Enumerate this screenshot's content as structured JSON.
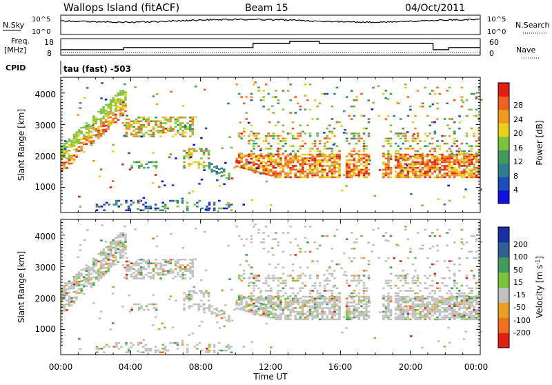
{
  "header": {
    "title": "Wallops Island (fitACF)",
    "beam": "Beam 15",
    "date": "04/Oct/2011"
  },
  "params": {
    "nsky_label": "N.Sky",
    "nsky_ticks": [
      "10^5",
      "10^0"
    ],
    "nsearch_label": "N.Search",
    "nsearch_ticks": [
      "10^5",
      "10^0"
    ],
    "freq_label": [
      "Freq.",
      "[MHz]"
    ],
    "freq_ticks": [
      "18",
      "8"
    ],
    "nave_label": "Nave",
    "nave_ticks": [
      "60",
      "0"
    ],
    "cpid_label": "CPID",
    "cpid_value": "tau (fast) -503"
  },
  "x_axis": {
    "label": "Time UT",
    "ticks": [
      "00:00",
      "04:00",
      "08:00",
      "12:00",
      "16:00",
      "20:00",
      "00:00"
    ]
  },
  "chart_data": [
    {
      "type": "heatmap",
      "name": "power",
      "ylabel": "Slant Range [km]",
      "yticks": [
        "1000",
        "2000",
        "3000",
        "4000"
      ],
      "ylim": [
        200,
        4500
      ],
      "xlim_hours": [
        0,
        24
      ],
      "colorbar": {
        "label": "Power [dB]",
        "ticks": [
          "4",
          "8",
          "12",
          "16",
          "20",
          "24",
          "28"
        ],
        "colors": [
          "#1010e0",
          "#1a50b8",
          "#2f7d8d",
          "#3f9a5d",
          "#7cc33d",
          "#e8d21a",
          "#f09a1e",
          "#f06020",
          "#e02010"
        ]
      },
      "bands": [
        {
          "t": [
            0.0,
            3.7
          ],
          "r": [
            1400,
            3900
          ],
          "note": "rising band"
        },
        {
          "t": [
            3.7,
            7.6
          ],
          "r": [
            2650,
            3300
          ]
        },
        {
          "t": [
            4.0,
            5.5
          ],
          "r": [
            1650,
            1850
          ]
        },
        {
          "t": [
            7.0,
            8.5
          ],
          "r": [
            1650,
            2300
          ]
        },
        {
          "t": [
            8.3,
            9.7
          ],
          "r": [
            1250,
            1900
          ]
        },
        {
          "t": [
            10.0,
            24.0
          ],
          "r": [
            1200,
            2800
          ]
        },
        {
          "t": [
            10.5,
            24.0
          ],
          "r": [
            2800,
            4500
          ],
          "note": "scattered"
        },
        {
          "t": [
            0.0,
            10.5
          ],
          "r": [
            300,
            600
          ],
          "note": "near-range echoes"
        }
      ]
    },
    {
      "type": "heatmap",
      "name": "velocity",
      "ylabel": "Slant Range [km]",
      "yticks": [
        "1000",
        "2000",
        "3000",
        "4000"
      ],
      "ylim": [
        200,
        4500
      ],
      "xlim_hours": [
        0,
        24
      ],
      "colorbar": {
        "label": "Velocity [m s^-1]",
        "ticks": [
          "200",
          "100",
          "50",
          "15",
          "-15",
          "-50",
          "-100",
          "-200"
        ],
        "colors": [
          "#1a2fa0",
          "#2f6090",
          "#3f9a5d",
          "#7cc33d",
          "#c0c0c0",
          "#e8a020",
          "#f07020",
          "#e02010"
        ]
      },
      "dominant_color": "#c0c0c0"
    }
  ]
}
